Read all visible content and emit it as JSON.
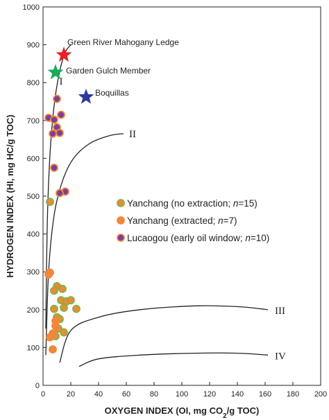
{
  "chart_data": {
    "type": "scatter",
    "xlabel": "OXYGEN INDEX (OI, mg CO",
    "xlabel_sub": "2",
    "xlabel_end": "/g TOC)",
    "ylabel": "HYDROGEN INDEX (HI, mg HC/g TOC)",
    "xlim": [
      0,
      200
    ],
    "ylim": [
      0,
      1000
    ],
    "x_ticks": [
      0,
      20,
      40,
      60,
      80,
      100,
      120,
      140,
      160,
      180,
      200
    ],
    "y_ticks": [
      0,
      100,
      200,
      300,
      400,
      500,
      600,
      700,
      800,
      900,
      1000
    ],
    "grid": false,
    "legend_position": "center-right",
    "series": [
      {
        "name": "Yanchang (no extraction; ",
        "name_italic": "n",
        "name_end": "=15)",
        "color": "#f0883a",
        "edge": "#7fb342",
        "points": [
          [
            5,
            485
          ],
          [
            10,
            262
          ],
          [
            14,
            255
          ],
          [
            8,
            250
          ],
          [
            13,
            225
          ],
          [
            17,
            222
          ],
          [
            8,
            202
          ],
          [
            15,
            205
          ],
          [
            20,
            225
          ],
          [
            24,
            202
          ],
          [
            10,
            180
          ],
          [
            12,
            175
          ],
          [
            11,
            150
          ],
          [
            15,
            140
          ],
          [
            9,
            130
          ]
        ]
      },
      {
        "name": "Yanchang (extracted; ",
        "name_italic": "n",
        "name_end": "=7)",
        "color": "#f0883a",
        "edge": "#f0883a",
        "points": [
          [
            5,
            298
          ],
          [
            4,
            293
          ],
          [
            9,
            170
          ],
          [
            9,
            157
          ],
          [
            7,
            137
          ],
          [
            5,
            127
          ],
          [
            7,
            95
          ]
        ]
      },
      {
        "name": "Lucaogou (early oil window; ",
        "name_italic": "n",
        "name_end": "=10)",
        "color": "#7a3f9a",
        "edge": "#f0883a",
        "points": [
          [
            10,
            757
          ],
          [
            4,
            707
          ],
          [
            8,
            702
          ],
          [
            13,
            715
          ],
          [
            10,
            682
          ],
          [
            7,
            665
          ],
          [
            12,
            667
          ],
          [
            8,
            575
          ],
          [
            16,
            512
          ],
          [
            12,
            508
          ]
        ]
      }
    ],
    "stars": [
      {
        "label": "Green River Mahogany Ledge",
        "x": 15,
        "y": 873,
        "color": "#e8202a"
      },
      {
        "label": "Garden Gulch Member",
        "x": 9,
        "y": 827,
        "color": "#1aa85a"
      },
      {
        "label": "Boquillas",
        "x": 31,
        "y": 762,
        "color": "#2b3a9b"
      }
    ],
    "curves": [
      {
        "label": "I",
        "points": [
          [
            2,
            150
          ],
          [
            3,
            420
          ],
          [
            5,
            610
          ],
          [
            8,
            740
          ],
          [
            12,
            830
          ],
          [
            16,
            880
          ],
          [
            20,
            900
          ]
        ]
      },
      {
        "label": "II",
        "points": [
          [
            2,
            80
          ],
          [
            4,
            300
          ],
          [
            8,
            450
          ],
          [
            14,
            540
          ],
          [
            22,
            600
          ],
          [
            34,
            640
          ],
          [
            48,
            660
          ],
          [
            58,
            665
          ]
        ]
      },
      {
        "label": "III",
        "points": [
          [
            12,
            60
          ],
          [
            20,
            145
          ],
          [
            40,
            180
          ],
          [
            70,
            200
          ],
          [
            110,
            210
          ],
          [
            140,
            208
          ],
          [
            162,
            200
          ]
        ]
      },
      {
        "label": "IV",
        "points": [
          [
            26,
            50
          ],
          [
            40,
            70
          ],
          [
            70,
            80
          ],
          [
            110,
            85
          ],
          [
            140,
            85
          ],
          [
            162,
            80
          ]
        ]
      }
    ]
  }
}
